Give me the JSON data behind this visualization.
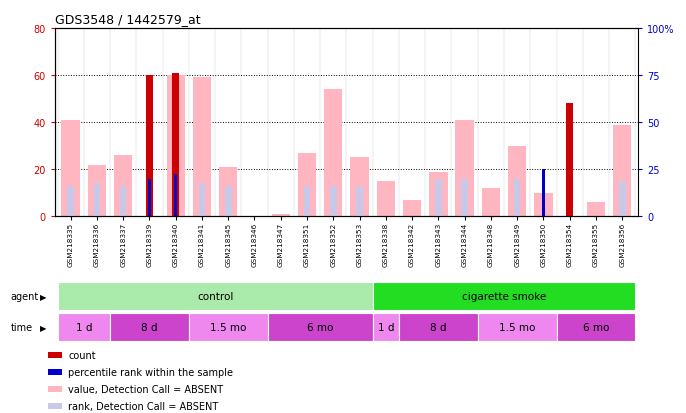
{
  "title": "GDS3548 / 1442579_at",
  "samples": [
    "GSM218335",
    "GSM218336",
    "GSM218337",
    "GSM218339",
    "GSM218340",
    "GSM218341",
    "GSM218345",
    "GSM218346",
    "GSM218347",
    "GSM218351",
    "GSM218352",
    "GSM218353",
    "GSM218338",
    "GSM218342",
    "GSM218343",
    "GSM218344",
    "GSM218348",
    "GSM218349",
    "GSM218350",
    "GSM218354",
    "GSM218355",
    "GSM218356"
  ],
  "value_absent": [
    41,
    22,
    26,
    0,
    60,
    59,
    21,
    0,
    1,
    27,
    54,
    25,
    15,
    7,
    19,
    41,
    12,
    30,
    10,
    0,
    6,
    39
  ],
  "rank_absent": [
    13,
    14,
    13,
    0,
    16,
    14,
    13,
    0,
    0,
    13,
    13,
    13,
    0,
    0,
    16,
    16,
    0,
    16,
    0,
    0,
    0,
    15
  ],
  "count_red": [
    0,
    0,
    0,
    60,
    61,
    0,
    0,
    0,
    0,
    0,
    0,
    0,
    0,
    0,
    0,
    0,
    0,
    0,
    0,
    48,
    0,
    0
  ],
  "rank_blue": [
    0,
    0,
    0,
    16,
    18,
    0,
    0,
    0,
    0,
    0,
    0,
    0,
    0,
    0,
    0,
    0,
    0,
    0,
    20,
    0,
    0,
    0
  ],
  "agent_groups": [
    {
      "label": "control",
      "start": 0,
      "end": 11,
      "color": "#AAEAAA"
    },
    {
      "label": "cigarette smoke",
      "start": 12,
      "end": 21,
      "color": "#22DD22"
    }
  ],
  "time_groups": [
    {
      "label": "1 d",
      "start": 0,
      "end": 1,
      "color": "#EE88EE"
    },
    {
      "label": "8 d",
      "start": 2,
      "end": 4,
      "color": "#CC44CC"
    },
    {
      "label": "1.5 mo",
      "start": 5,
      "end": 7,
      "color": "#EE88EE"
    },
    {
      "label": "6 mo",
      "start": 8,
      "end": 11,
      "color": "#CC44CC"
    },
    {
      "label": "1 d",
      "start": 12,
      "end": 12,
      "color": "#EE88EE"
    },
    {
      "label": "8 d",
      "start": 13,
      "end": 15,
      "color": "#CC44CC"
    },
    {
      "label": "1.5 mo",
      "start": 16,
      "end": 18,
      "color": "#EE88EE"
    },
    {
      "label": "6 mo",
      "start": 19,
      "end": 21,
      "color": "#CC44CC"
    }
  ],
  "ylim_left": [
    0,
    80
  ],
  "ylim_right": [
    0,
    100
  ],
  "yticks_left": [
    0,
    20,
    40,
    60,
    80
  ],
  "yticks_right": [
    0,
    25,
    50,
    75,
    100
  ],
  "color_value_absent": "#FFB6C1",
  "color_rank_absent": "#C8C8E8",
  "color_count": "#CC0000",
  "color_rank": "#0000CC",
  "bg_color": "#FFFFFF",
  "tick_label_color_left": "#CC0000",
  "tick_label_color_right": "#0000CC",
  "pink_bar_width": 0.7,
  "blue_bar_width": 0.25,
  "red_bar_width": 0.25,
  "dkblue_bar_width": 0.1
}
